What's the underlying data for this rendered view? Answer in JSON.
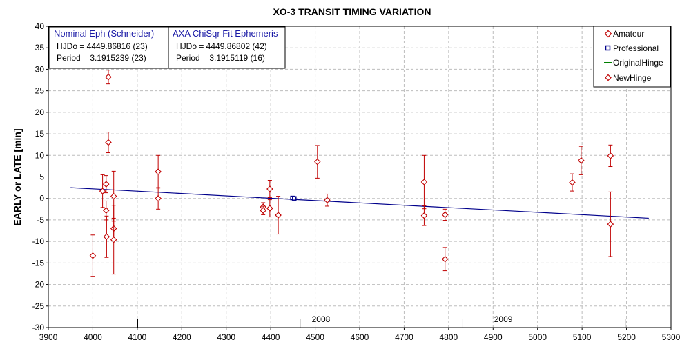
{
  "chart_data": {
    "type": "scatter",
    "title": "XO-3 TRANSIT TIMING VARIATION",
    "ylabel": "EARLY or LATE [min]",
    "xlabel": "",
    "xlim": [
      3900,
      5300
    ],
    "ylim": [
      -30,
      40
    ],
    "xticks": [
      3900,
      4000,
      4100,
      4200,
      4300,
      4400,
      4500,
      4600,
      4700,
      4800,
      4900,
      5000,
      5100,
      5200,
      5300
    ],
    "yticks": [
      40,
      35,
      30,
      25,
      20,
      15,
      10,
      5,
      0,
      -5,
      -10,
      -15,
      -20,
      -25,
      -30
    ],
    "grid": true,
    "legend_position": "top-right",
    "legend": [
      {
        "name": "Amateur",
        "marker": "diamond",
        "color": "#c00000"
      },
      {
        "name": "Professional",
        "marker": "square",
        "color": "#00008b"
      },
      {
        "name": "OriginalHinge",
        "marker": "line",
        "color": "#008000"
      },
      {
        "name": "NewHinge",
        "marker": "diamond",
        "color": "#c00000"
      }
    ],
    "year_markers": [
      {
        "label": "2008",
        "x": 4466,
        "label_x": 4513
      },
      {
        "label": "2009",
        "x": 4832,
        "label_x": 4923
      }
    ],
    "year_boundaries": [
      4101,
      4466,
      4832,
      5197
    ],
    "ephemeris_boxes": [
      {
        "title": "Nominal Eph (Schneider)",
        "lines": [
          "HJDo = 4449.86816 (23)",
          "Period = 3.1915239 (23)"
        ]
      },
      {
        "title": "AXA ChiSqr Fit Ephemeris",
        "lines": [
          "HJDo = 4449.86802 (42)",
          "Period = 3.1915119 (16)"
        ]
      }
    ],
    "fit_line": {
      "x": [
        3950,
        5250
      ],
      "y": [
        2.5,
        -4.6
      ],
      "color": "#00008b"
    },
    "series": [
      {
        "name": "Amateur",
        "color": "#c00000",
        "points": [
          {
            "x": 4000,
            "y": -13.3,
            "err": 4.8
          },
          {
            "x": 4022,
            "y": 1.7,
            "err": 3.8
          },
          {
            "x": 4030,
            "y": 3.3,
            "err": 2.0
          },
          {
            "x": 4030,
            "y": -2.8,
            "err": 2.2
          },
          {
            "x": 4031,
            "y": -8.9,
            "err": 4.8
          },
          {
            "x": 4035,
            "y": 28.2,
            "err": 1.6
          },
          {
            "x": 4035,
            "y": 13.0,
            "err": 2.4
          },
          {
            "x": 4047,
            "y": 0.5,
            "err": 5.8
          },
          {
            "x": 4047,
            "y": -7.0,
            "err": 2.4
          },
          {
            "x": 4047,
            "y": -9.6,
            "err": 8.0
          },
          {
            "x": 4147,
            "y": 6.2,
            "err": 3.8
          },
          {
            "x": 4147,
            "y": 0.0,
            "err": 2.5
          },
          {
            "x": 4383,
            "y": -2.0,
            "err": 1.0
          },
          {
            "x": 4383,
            "y": -2.8,
            "err": 1.0
          },
          {
            "x": 4398,
            "y": 2.2,
            "err": 2.0
          },
          {
            "x": 4398,
            "y": -2.3,
            "err": 2.0
          },
          {
            "x": 4417,
            "y": -3.9,
            "err": 4.4
          },
          {
            "x": 4505,
            "y": 8.5,
            "err": 3.8
          },
          {
            "x": 4527,
            "y": -0.4,
            "err": 1.4
          },
          {
            "x": 4745,
            "y": 3.8,
            "err": 6.2
          },
          {
            "x": 4745,
            "y": -4.0,
            "err": 2.3
          },
          {
            "x": 4792,
            "y": -3.8,
            "err": 1.3
          },
          {
            "x": 4792,
            "y": -14.1,
            "err": 2.7
          },
          {
            "x": 5078,
            "y": 3.7,
            "err": 2.0
          },
          {
            "x": 5098,
            "y": 8.8,
            "err": 3.3
          },
          {
            "x": 5164,
            "y": 9.9,
            "err": 2.5
          },
          {
            "x": 5164,
            "y": -6.0,
            "err": 7.5
          }
        ]
      },
      {
        "name": "Professional",
        "color": "#00008b",
        "points": [
          {
            "x": 4449,
            "y": 0.1,
            "err": 0.3
          },
          {
            "x": 4453,
            "y": 0.0,
            "err": 0.3
          }
        ]
      },
      {
        "name": "OriginalHinge",
        "color": "#008000",
        "points": []
      },
      {
        "name": "NewHinge",
        "color": "#c00000",
        "points": []
      }
    ]
  }
}
